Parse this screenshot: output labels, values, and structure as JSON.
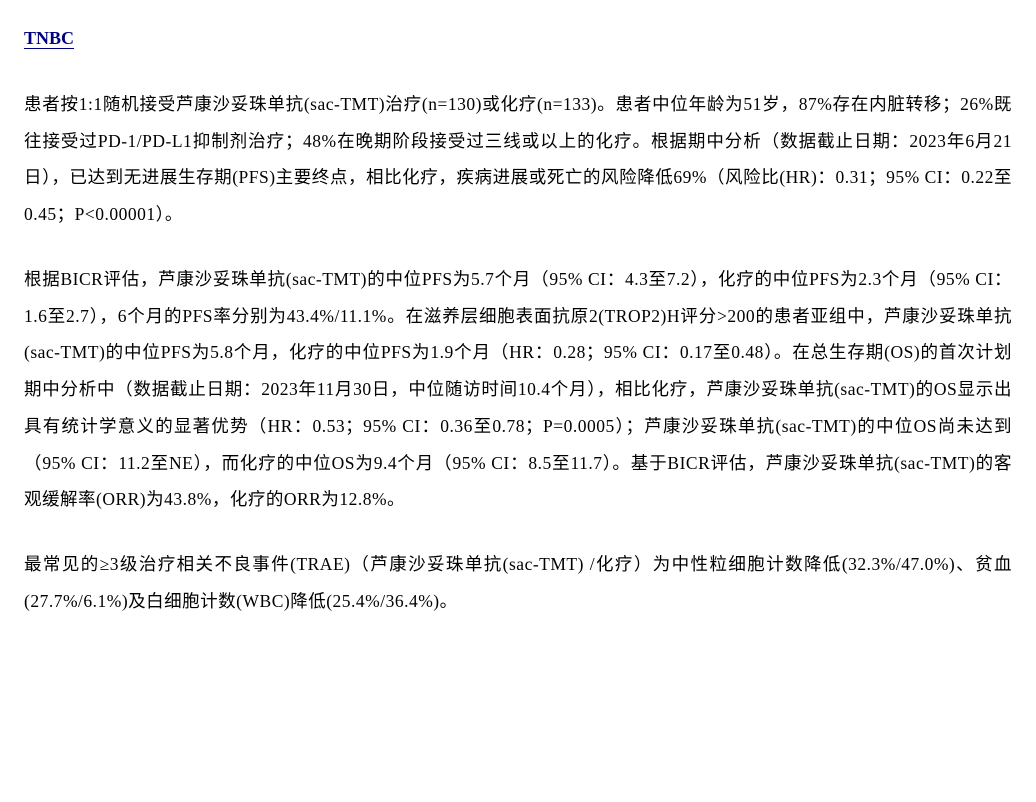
{
  "heading": "TNBC",
  "paragraphs": [
    "患者按1:1随机接受芦康沙妥珠单抗(sac-TMT)治疗(n=130)或化疗(n=133)。患者中位年龄为51岁，87%存在内脏转移；26%既往接受过PD-1/PD-L1抑制剂治疗；48%在晚期阶段接受过三线或以上的化疗。根据期中分析（数据截止日期：2023年6月21日），已达到无进展生存期(PFS)主要终点，相比化疗，疾病进展或死亡的风险降低69%（风险比(HR)：0.31；95% CI：0.22至0.45；P<0.00001）。",
    "根据BICR评估，芦康沙妥珠单抗(sac-TMT)的中位PFS为5.7个月（95% CI：4.3至7.2），化疗的中位PFS为2.3个月（95% CI：1.6至2.7），6个月的PFS率分别为43.4%/11.1%。在滋养层细胞表面抗原2(TROP2)H评分>200的患者亚组中，芦康沙妥珠单抗(sac-TMT)的中位PFS为5.8个月，化疗的中位PFS为1.9个月（HR：0.28；95% CI：0.17至0.48）。在总生存期(OS)的首次计划期中分析中（数据截止日期：2023年11月30日，中位随访时间10.4个月），相比化疗，芦康沙妥珠单抗(sac-TMT)的OS显示出具有统计学意义的显著优势（HR：0.53；95% CI：0.36至0.78；P=0.0005）；芦康沙妥珠单抗(sac-TMT)的中位OS尚未达到（95% CI：11.2至NE），而化疗的中位OS为9.4个月（95% CI：8.5至11.7）。基于BICR评估，芦康沙妥珠单抗(sac-TMT)的客观缓解率(ORR)为43.8%，化疗的ORR为12.8%。",
    "最常见的≥3级治疗相关不良事件(TRAE)（芦康沙妥珠单抗(sac-TMT) /化疗）为中性粒细胞计数降低(32.3%/47.0%)、贫血(27.7%/6.1%)及白细胞计数(WBC)降低(25.4%/36.4%)。"
  ],
  "colors": {
    "heading_color": "#000080",
    "text_color": "#000000",
    "background_color": "#ffffff"
  },
  "typography": {
    "body_fontsize": 17.5,
    "heading_fontsize": 18,
    "line_height": 2.1,
    "letter_spacing": 0.5
  }
}
